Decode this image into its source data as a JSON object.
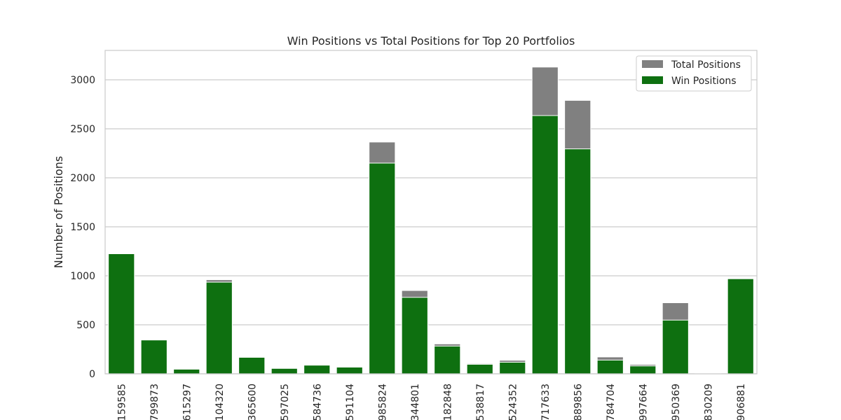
{
  "chart_data": {
    "type": "bar",
    "title": "Win Positions vs Total Positions for Top 20 Portfolios",
    "xlabel": "",
    "ylabel": "Number of Positions",
    "ylim": [
      0,
      3300
    ],
    "yticks": [
      0,
      500,
      1000,
      1500,
      2000,
      2500,
      3000
    ],
    "grid": true,
    "legend_position": "top-right",
    "categories": [
      "159585",
      "799873",
      "615297",
      "104320",
      "365600",
      "597025",
      "584736",
      "591104",
      "985824",
      "344801",
      "182848",
      "538817",
      "524352",
      "717633",
      "889856",
      "784704",
      "997664",
      "950369",
      "830209",
      "906881"
    ],
    "series": [
      {
        "name": "Total Positions",
        "color": "#808080",
        "values": [
          1225,
          345,
          47,
          960,
          168,
          55,
          88,
          68,
          2365,
          850,
          305,
          105,
          138,
          3130,
          2790,
          172,
          95,
          725,
          8,
          970
        ]
      },
      {
        "name": "Win Positions",
        "color": "#0e7010",
        "values": [
          1225,
          345,
          47,
          935,
          168,
          55,
          88,
          68,
          2150,
          780,
          283,
          97,
          118,
          2635,
          2295,
          140,
          80,
          548,
          6,
          970
        ]
      }
    ]
  }
}
